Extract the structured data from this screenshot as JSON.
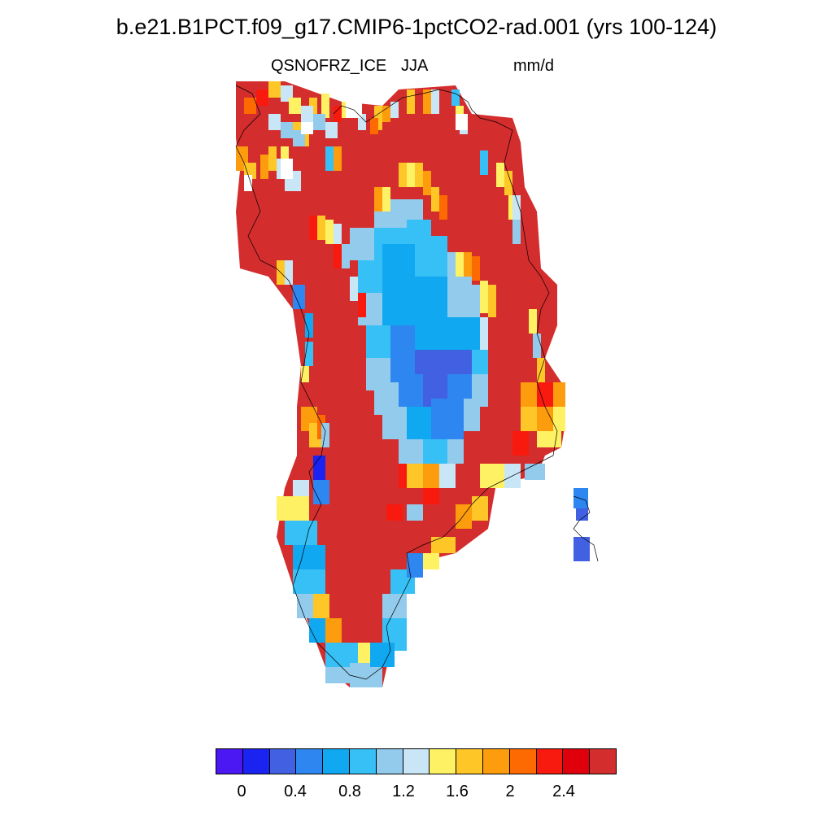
{
  "figure": {
    "title": "b.e21.B1PCT.f09_g17.CMIP6-1pctCO2-rad.001 (yrs 100-124)",
    "variable": "QSNOFRZ_ICE",
    "season": "JJA",
    "units": "mm/d"
  },
  "colorbar": {
    "colors": [
      "#4b17f2",
      "#1a23f0",
      "#4161e2",
      "#2e86f0",
      "#11a8f2",
      "#36c0f5",
      "#92cbeb",
      "#c9e6f7",
      "#fef163",
      "#fec727",
      "#fd9c0c",
      "#fd6a02",
      "#f91a0f",
      "#e0000c",
      "#d42d2d"
    ],
    "labels": [
      "0",
      "0.4",
      "0.8",
      "1.2",
      "1.6",
      "2",
      "2.4"
    ]
  },
  "chart_data": {
    "type": "heatmap",
    "region": "Greenland",
    "title": "b.e21.B1PCT.f09_g17.CMIP6-1pctCO2-rad.001 (yrs 100-124)",
    "variable": "QSNOFRZ_ICE",
    "season": "JJA",
    "units": "mm/d",
    "color_levels": [
      0,
      0.2,
      0.4,
      0.6,
      0.8,
      1.0,
      1.2,
      1.4,
      1.6,
      1.8,
      2.0,
      2.2,
      2.4,
      2.6
    ],
    "pattern": {
      "interior": "0.2-1.2 (blue, minimum near 0.4 in center)",
      "ice_sheet_margin": "1.4-2.2 (yellow/orange band)",
      "outer_ablation_zone": ">2.6 (dark red)",
      "southwest_coast": "0.6-1.2 (light blue patches)",
      "east_coast_islands": "0.4-0.6 (blue)"
    }
  }
}
